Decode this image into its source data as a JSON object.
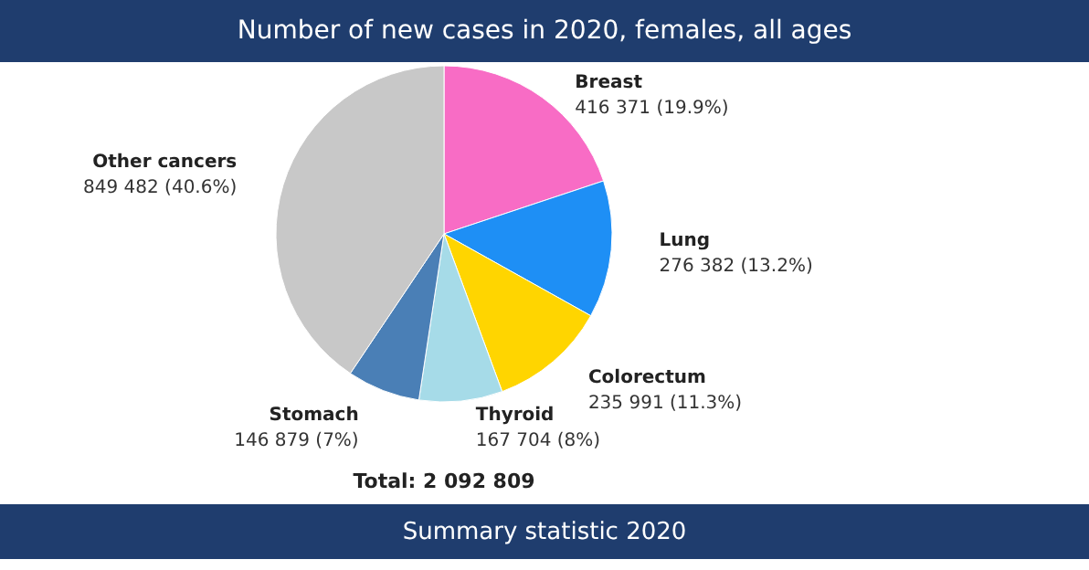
{
  "chart_data": {
    "type": "pie",
    "title": "Number of new cases in 2020, females, all ages",
    "categories": [
      "Breast",
      "Lung",
      "Colorectum",
      "Thyroid",
      "Stomach",
      "Other cancers"
    ],
    "values": [
      416371,
      276382,
      235991,
      167704,
      146879,
      849482
    ],
    "value_labels": [
      "416 371 (19.9%)",
      "276 382 (13.2%)",
      "235 991 (11.3%)",
      "167 704 (8%)",
      "146 879 (7%)",
      "849 482 (40.6%)"
    ],
    "colors": [
      "#f86cc5",
      "#1e8ff5",
      "#ffd500",
      "#a6dbe8",
      "#4a7fb6",
      "#c8c8c8"
    ],
    "annotations": [
      "Total: 2 092 809",
      "Summary statistic 2020"
    ]
  }
}
